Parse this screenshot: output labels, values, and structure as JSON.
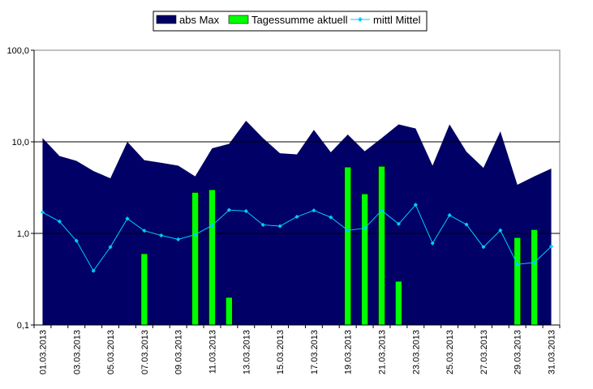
{
  "chart_data": {
    "type": "bar",
    "title": "",
    "xlabel": "",
    "ylabel": "",
    "yscale": "log",
    "ylim": [
      0.1,
      100
    ],
    "grid": "horizontal at 1, 10",
    "legend_position": "top",
    "colors": {
      "abs_max": "#000066",
      "tagessumme": "#00ff00",
      "mittel": "#00ccff",
      "plot_bg": "#ffffff"
    },
    "y_ticks": [
      {
        "value": 0.1,
        "label": "0,1"
      },
      {
        "value": 1,
        "label": "1,0"
      },
      {
        "value": 10,
        "label": "10,0"
      },
      {
        "value": 100,
        "label": "100,0"
      }
    ],
    "x_tick_labels": [
      "01.03.2013",
      "03.03.2013",
      "05.03.2013",
      "07.03.2013",
      "09.03.2013",
      "11.03.2013",
      "13.03.2013",
      "15.03.2013",
      "17.03.2013",
      "19.03.2013",
      "21.03.2013",
      "23.03.2013",
      "25.03.2013",
      "27.03.2013",
      "29.03.2013",
      "31.03.2013"
    ],
    "categories": [
      "01.03.2013",
      "02.03.2013",
      "03.03.2013",
      "04.03.2013",
      "05.03.2013",
      "06.03.2013",
      "07.03.2013",
      "08.03.2013",
      "09.03.2013",
      "10.03.2013",
      "11.03.2013",
      "12.03.2013",
      "13.03.2013",
      "14.03.2013",
      "15.03.2013",
      "16.03.2013",
      "17.03.2013",
      "18.03.2013",
      "19.03.2013",
      "20.03.2013",
      "21.03.2013",
      "22.03.2013",
      "23.03.2013",
      "24.03.2013",
      "25.03.2013",
      "26.03.2013",
      "27.03.2013",
      "28.03.2013",
      "29.03.2013",
      "30.03.2013",
      "31.03.2013"
    ],
    "series": [
      {
        "name": "abs Max",
        "kind": "area",
        "values": [
          11.0,
          7.0,
          6.2,
          4.8,
          4.0,
          10.0,
          6.3,
          5.9,
          5.5,
          4.2,
          8.5,
          9.5,
          17.0,
          11.0,
          7.5,
          7.3,
          13.5,
          7.7,
          12.0,
          7.9,
          11.0,
          15.5,
          14.0,
          5.5,
          15.5,
          7.8,
          5.2,
          13.0,
          3.4,
          4.2,
          5.1
        ]
      },
      {
        "name": "Tagessumme aktuell",
        "kind": "bar",
        "values": [
          null,
          null,
          null,
          null,
          null,
          null,
          0.6,
          null,
          null,
          2.8,
          3.0,
          0.2,
          null,
          null,
          null,
          null,
          null,
          null,
          5.3,
          2.7,
          5.4,
          0.3,
          null,
          null,
          null,
          null,
          null,
          null,
          0.9,
          1.1,
          null
        ]
      },
      {
        "name": "mittl Mittel",
        "kind": "line",
        "values": [
          1.7,
          1.35,
          0.83,
          0.39,
          0.71,
          1.45,
          1.07,
          0.95,
          0.86,
          0.97,
          1.22,
          1.8,
          1.75,
          1.24,
          1.2,
          1.52,
          1.78,
          1.5,
          1.08,
          1.14,
          1.78,
          1.27,
          2.05,
          0.78,
          1.58,
          1.25,
          0.71,
          1.08,
          0.46,
          0.48,
          0.72
        ]
      }
    ]
  }
}
